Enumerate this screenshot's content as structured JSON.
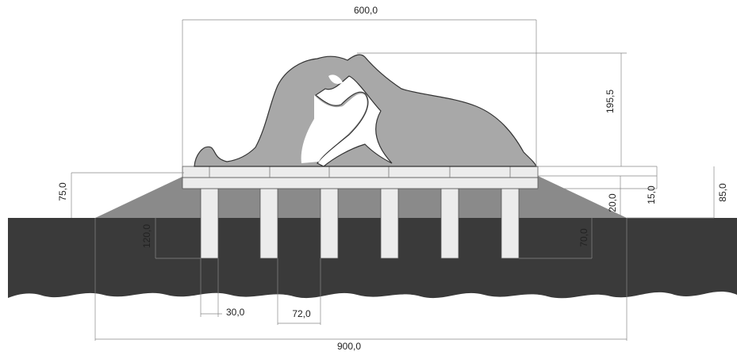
{
  "drawing": {
    "dimensions": {
      "top_width": "600,0",
      "sculpture_height": "195,5",
      "embankment_height": "75,0",
      "post_height": "120,0",
      "slab_offset": "20,0",
      "slab_thickness": "15,0",
      "total_slab_height": "85,0",
      "post_depth": "70,0",
      "post_width": "30,0",
      "post_spacing": "72,0",
      "total_width": "900,0"
    }
  }
}
